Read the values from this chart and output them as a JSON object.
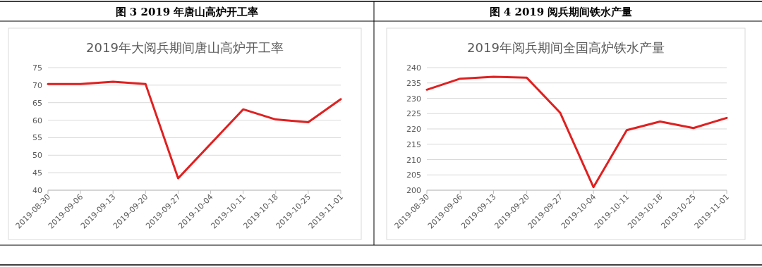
{
  "chart_data": [
    {
      "type": "line",
      "title": "图 3 2019 年唐山高炉开工率",
      "subtitle": "2019年大阅兵期间唐山高炉开工率",
      "categories": [
        "2019-08-30",
        "2019-09-06",
        "2019-09-13",
        "2019-09-20",
        "2019-09-27",
        "2019-10-04",
        "2019-10-11",
        "2019-10-18",
        "2019-10-25",
        "2019-11-01"
      ],
      "series": [
        {
          "color": "#e02020",
          "values": [
            70.3,
            70.3,
            71.0,
            70.3,
            43.4,
            null,
            63.1,
            60.2,
            59.4,
            66.0
          ]
        }
      ],
      "ylim": [
        40,
        75
      ],
      "yticks": [
        40,
        45,
        50,
        55,
        60,
        65,
        70,
        75
      ],
      "grid": "y",
      "marker": "none",
      "line_style": "solid"
    },
    {
      "type": "line",
      "title": "图 4 2019 阅兵期间铁水产量",
      "subtitle": "2019年阅兵期间全国高炉铁水产量",
      "categories": [
        "2019-08-30",
        "2019-09-06",
        "2019-09-13",
        "2019-09-20",
        "2019-09-27",
        "2019-10-04",
        "2019-10-11",
        "2019-10-18",
        "2019-10-25",
        "2019-11-01"
      ],
      "series": [
        {
          "color": "#e02020",
          "values": [
            232.8,
            236.4,
            237.0,
            236.7,
            225.3,
            201.0,
            219.6,
            222.4,
            220.3,
            223.6
          ]
        }
      ],
      "ylim": [
        200,
        240
      ],
      "yticks": [
        200,
        205,
        210,
        215,
        220,
        225,
        230,
        235,
        240
      ],
      "grid": "y",
      "marker": "none",
      "line_style": "solid"
    }
  ]
}
